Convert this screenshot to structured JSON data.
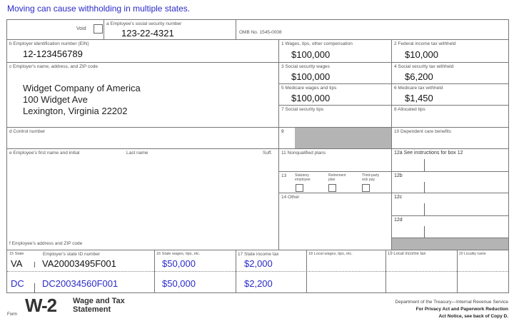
{
  "note": "Moving can cause withholding in multiple states.",
  "top": {
    "void_label": "Void",
    "a_label": "a  Employee's social security number",
    "ssn": "123-22-4321",
    "omb": "OMB No. 1545-0008"
  },
  "b": {
    "label": "b  Employer identification number (EIN)",
    "value": "12-123456789"
  },
  "c": {
    "label": "c  Employer's name, address, and ZIP code",
    "lines": [
      "Widget Company of America",
      "100 Widget Ave",
      "Lexington, Virginia 22202"
    ]
  },
  "d": {
    "label": "d  Control number"
  },
  "e": {
    "label": "e  Employee's first name and initial",
    "last": "Last name",
    "suff": "Suff."
  },
  "f": {
    "label": "f  Employee's address and ZIP code"
  },
  "boxes": {
    "b1": {
      "label": "1  Wages, tips, other compensation",
      "value": "$100,000"
    },
    "b2": {
      "label": "2  Federal income tax withheld",
      "value": "$10,000"
    },
    "b3": {
      "label": "3  Social security wages",
      "value": "$100,000"
    },
    "b4": {
      "label": "4  Social security tax withheld",
      "value": "$6,200"
    },
    "b5": {
      "label": "5  Medicare wages and tips",
      "value": "$100,000"
    },
    "b6": {
      "label": "6  Medicare tax withheld",
      "value": "$1,450"
    },
    "b7": {
      "label": "7  Social security tips"
    },
    "b8": {
      "label": "8  Allocated tips"
    },
    "b9": {
      "label": "9"
    },
    "b10": {
      "label": "10  Dependent care benefits"
    },
    "b11": {
      "label": "11  Nonqualified plans"
    },
    "b12a": {
      "label": "12a  See instructions for box 12"
    },
    "b12b": {
      "label": "12b"
    },
    "b12c": {
      "label": "12c"
    },
    "b12d": {
      "label": "12d"
    },
    "b13": {
      "label": "13",
      "statutory": "Statutory employee",
      "retirement": "Retirement plan",
      "sickpay": "Third-party sick pay"
    },
    "b14": {
      "label": "14  Other"
    }
  },
  "state_headers": {
    "s15": "15  State",
    "id": "Employer's state ID number",
    "s16": "16  State wages, tips, etc.",
    "s17": "17  State income tax",
    "s18": "18  Local wages, tips, etc.",
    "s19": "19  Local income tax",
    "s20": "20  Locality name"
  },
  "state_rows": [
    {
      "state": "VA",
      "id": "VA20003495F001",
      "wages": "$50,000",
      "tax": "$2,000"
    },
    {
      "state": "DC",
      "id": "DC20034560F001",
      "wages": "$50,000",
      "tax": "$2,200"
    }
  ],
  "footer": {
    "form": "Form",
    "w2": "W-2",
    "title1": "Wage and Tax",
    "title2": "Statement",
    "dept": "Department of the Treasury—Internal Revenue Service",
    "privacy1": "For Privacy Act and Paperwork Reduction",
    "privacy2": "Act Notice, see back of Copy D."
  },
  "colors": {
    "blue": "#2a2ac8",
    "shade": "#b4b4b4"
  }
}
